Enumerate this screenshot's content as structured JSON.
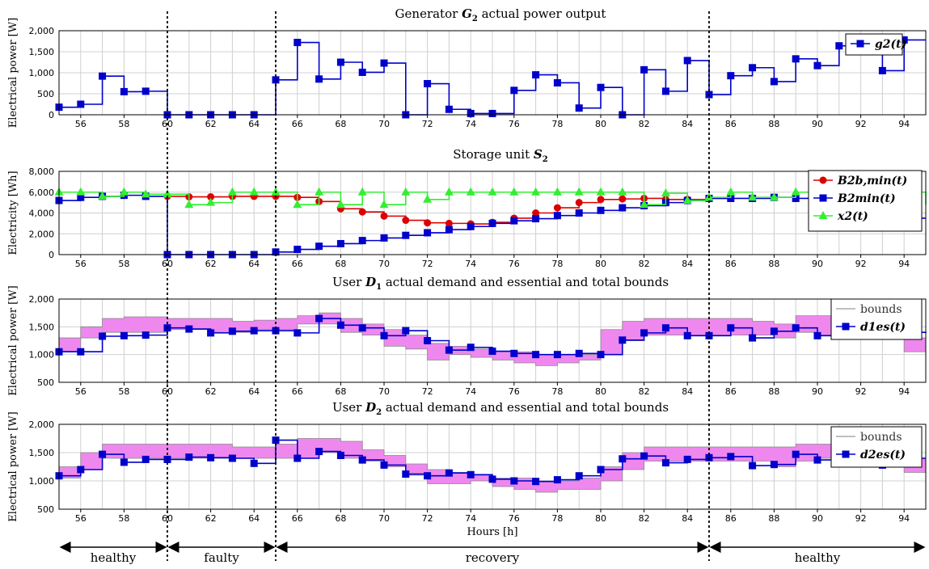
{
  "x_axis_label": "Hours [h]",
  "phases": [
    {
      "label": "healthy",
      "from": 55,
      "to": 60
    },
    {
      "label": "faulty",
      "from": 60,
      "to": 65
    },
    {
      "label": "recovery",
      "from": 65,
      "to": 85
    },
    {
      "label": "healthy",
      "from": 85,
      "to": 95
    }
  ],
  "fault_lines": [
    60,
    65,
    85
  ],
  "colors": {
    "blue": "#0000cc",
    "red": "#dd0000",
    "green": "#33ee33",
    "band": "#ee88ee"
  },
  "chart_data": [
    {
      "type": "line",
      "title": "Generator G2 actual power output",
      "ylabel": "Electrical power [W]",
      "ylim": [
        0,
        2000
      ],
      "yticks": [
        "0",
        "500",
        "1,000",
        "1,500",
        "2,000"
      ],
      "xlim": [
        55,
        95
      ],
      "xticks": [
        "56",
        "58",
        "60",
        "62",
        "64",
        "66",
        "68",
        "70",
        "72",
        "74",
        "76",
        "78",
        "80",
        "82",
        "84",
        "86",
        "88",
        "90",
        "92",
        "94"
      ],
      "step": true,
      "grid": true,
      "legend": "top-right",
      "series": [
        {
          "name": "g2(t)",
          "color": "#0000cc",
          "marker": "square",
          "x": [
            55,
            56,
            57,
            58,
            59,
            60,
            61,
            62,
            63,
            64,
            65,
            66,
            67,
            68,
            69,
            70,
            71,
            72,
            73,
            74,
            75,
            76,
            77,
            78,
            79,
            80,
            81,
            82,
            83,
            84,
            85,
            86,
            87,
            88,
            89,
            90,
            91,
            92,
            93,
            94
          ],
          "values": [
            180,
            250,
            920,
            550,
            560,
            0,
            0,
            0,
            0,
            0,
            830,
            1720,
            850,
            1250,
            1010,
            1230,
            0,
            740,
            130,
            30,
            30,
            580,
            950,
            760,
            160,
            650,
            0,
            1070,
            560,
            1290,
            480,
            930,
            1120,
            790,
            1330,
            1170,
            1640,
            1780,
            1050,
            1780
          ]
        }
      ]
    },
    {
      "type": "line",
      "title": "Storage unit S2",
      "ylabel": "Electricity [Wh]",
      "ylim": [
        0,
        8000
      ],
      "yticks": [
        "0",
        "2,000",
        "4,000",
        "6,000",
        "8,000"
      ],
      "xlim": [
        55,
        95
      ],
      "xticks": [
        "56",
        "58",
        "60",
        "62",
        "64",
        "66",
        "68",
        "70",
        "72",
        "74",
        "76",
        "78",
        "80",
        "82",
        "84",
        "86",
        "88",
        "90",
        "92",
        "94"
      ],
      "step": true,
      "grid": true,
      "legend": "top-right",
      "series": [
        {
          "name": "B2b,min(t)",
          "color": "#dd0000",
          "marker": "circle",
          "x": [
            60,
            61,
            62,
            63,
            64,
            65,
            66,
            67,
            68,
            69,
            70,
            71,
            72,
            73,
            74,
            75,
            76,
            77,
            78,
            79,
            80,
            81,
            82,
            83,
            84,
            85
          ],
          "values": [
            5600,
            5550,
            5550,
            5600,
            5600,
            5600,
            5500,
            5100,
            4400,
            4100,
            3700,
            3300,
            3050,
            3000,
            2950,
            3100,
            3500,
            4000,
            4500,
            5000,
            5300,
            5350,
            5400,
            5300,
            5300,
            5400
          ]
        },
        {
          "name": "B2min(t)",
          "color": "#0000cc",
          "marker": "square",
          "x": [
            55,
            56,
            57,
            58,
            59,
            60,
            61,
            62,
            63,
            64,
            65,
            66,
            67,
            68,
            69,
            70,
            71,
            72,
            73,
            74,
            75,
            76,
            77,
            78,
            79,
            80,
            81,
            82,
            83,
            84,
            85,
            86,
            87,
            88,
            89,
            90,
            91,
            92,
            93,
            94,
            95
          ],
          "values": [
            5200,
            5500,
            5600,
            5700,
            5600,
            0,
            0,
            0,
            0,
            0,
            250,
            500,
            800,
            1050,
            1350,
            1600,
            1850,
            2100,
            2400,
            2700,
            3000,
            3250,
            3450,
            3750,
            4000,
            4250,
            4500,
            4700,
            5000,
            5200,
            5400,
            5400,
            5400,
            5500,
            5400,
            5300,
            4600,
            4500,
            4000,
            3500,
            3500
          ]
        },
        {
          "name": "x2(t)",
          "color": "#33ee33",
          "marker": "triangle",
          "x": [
            55,
            56,
            57,
            58,
            59,
            60,
            61,
            62,
            63,
            64,
            65,
            66,
            67,
            68,
            69,
            70,
            71,
            72,
            73,
            74,
            75,
            76,
            77,
            78,
            79,
            80,
            81,
            82,
            83,
            84,
            85,
            86,
            87,
            88,
            89,
            90,
            91,
            92,
            93,
            94,
            95
          ],
          "values": [
            6000,
            6000,
            5600,
            6000,
            5800,
            5800,
            4800,
            5000,
            6000,
            6000,
            6000,
            4800,
            6000,
            4800,
            6000,
            4800,
            6000,
            5300,
            6000,
            6000,
            6000,
            6000,
            6000,
            6000,
            6000,
            6000,
            6000,
            4800,
            5900,
            5200,
            5500,
            6000,
            5500,
            5500,
            6000,
            6000,
            6000,
            6000,
            6000,
            6000,
            4800
          ]
        }
      ]
    },
    {
      "type": "area",
      "title": "User D1 actual demand and essential and total bounds",
      "ylabel": "Electrical power [W]",
      "ylim": [
        500,
        2000
      ],
      "yticks": [
        "500",
        "1,000",
        "1,500",
        "2,000"
      ],
      "xlim": [
        55,
        95
      ],
      "xticks": [
        "56",
        "58",
        "60",
        "62",
        "64",
        "66",
        "68",
        "70",
        "72",
        "74",
        "76",
        "78",
        "80",
        "82",
        "84",
        "86",
        "88",
        "90",
        "92",
        "94"
      ],
      "step": true,
      "grid": true,
      "legend": "top-right",
      "band": {
        "name": "bounds",
        "x": [
          55,
          56,
          57,
          58,
          59,
          60,
          61,
          62,
          63,
          64,
          65,
          66,
          67,
          68,
          69,
          70,
          71,
          72,
          73,
          74,
          75,
          76,
          77,
          78,
          79,
          80,
          81,
          82,
          83,
          84,
          85,
          86,
          87,
          88,
          89,
          90,
          91,
          92,
          93,
          94
        ],
        "low": [
          1050,
          1300,
          1400,
          1400,
          1400,
          1450,
          1450,
          1400,
          1400,
          1450,
          1450,
          1550,
          1550,
          1400,
          1350,
          1150,
          1100,
          900,
          1000,
          950,
          900,
          850,
          800,
          850,
          900,
          1000,
          1250,
          1350,
          1350,
          1350,
          1350,
          1350,
          1350,
          1300,
          1400,
          1350,
          1350,
          1400,
          1300,
          1050
        ],
        "high": [
          1300,
          1500,
          1650,
          1680,
          1680,
          1650,
          1650,
          1650,
          1600,
          1620,
          1650,
          1700,
          1750,
          1650,
          1550,
          1450,
          1350,
          1200,
          1150,
          1100,
          1050,
          1050,
          1000,
          1000,
          1000,
          1450,
          1600,
          1650,
          1650,
          1650,
          1650,
          1650,
          1600,
          1550,
          1700,
          1700,
          1650,
          1650,
          1600,
          1300
        ]
      },
      "series": [
        {
          "name": "d1es(t)",
          "color": "#0000cc",
          "marker": "square",
          "x": [
            55,
            56,
            57,
            58,
            59,
            60,
            61,
            62,
            63,
            64,
            65,
            66,
            67,
            68,
            69,
            70,
            71,
            72,
            73,
            74,
            75,
            76,
            77,
            78,
            79,
            80,
            81,
            82,
            83,
            84,
            85,
            86,
            87,
            88,
            89,
            90,
            91,
            92,
            93,
            94,
            95
          ],
          "values": [
            1050,
            1050,
            1330,
            1340,
            1350,
            1480,
            1460,
            1390,
            1420,
            1430,
            1430,
            1390,
            1650,
            1530,
            1480,
            1340,
            1430,
            1250,
            1080,
            1130,
            1060,
            1020,
            1000,
            1000,
            1020,
            1000,
            1260,
            1390,
            1480,
            1340,
            1340,
            1480,
            1300,
            1420,
            1480,
            1340,
            1390,
            1400,
            1400,
            1400,
            1410
          ]
        }
      ]
    },
    {
      "type": "area",
      "title": "User D2 actual demand and essential and total bounds",
      "ylabel": "Electrical power [W]",
      "xlabel": "Hours [h]",
      "ylim": [
        500,
        2000
      ],
      "yticks": [
        "500",
        "1,000",
        "1,500",
        "2,000"
      ],
      "xlim": [
        55,
        95
      ],
      "xticks": [
        "56",
        "58",
        "60",
        "62",
        "64",
        "66",
        "68",
        "70",
        "72",
        "74",
        "76",
        "78",
        "80",
        "82",
        "84",
        "86",
        "88",
        "90",
        "92",
        "94"
      ],
      "step": true,
      "grid": true,
      "legend": "top-right",
      "band": {
        "name": "bounds",
        "x": [
          55,
          56,
          57,
          58,
          59,
          60,
          61,
          62,
          63,
          64,
          65,
          66,
          67,
          68,
          69,
          70,
          71,
          72,
          73,
          74,
          75,
          76,
          77,
          78,
          79,
          80,
          81,
          82,
          83,
          84,
          85,
          86,
          87,
          88,
          89,
          90,
          91,
          92,
          93,
          94
        ],
        "low": [
          1050,
          1200,
          1400,
          1400,
          1400,
          1400,
          1400,
          1400,
          1400,
          1400,
          1400,
          1400,
          1500,
          1400,
          1350,
          1250,
          1100,
          950,
          950,
          1000,
          900,
          850,
          800,
          850,
          850,
          1000,
          1200,
          1350,
          1350,
          1350,
          1350,
          1350,
          1350,
          1250,
          1350,
          1400,
          1400,
          1350,
          1300,
          1150
        ],
        "high": [
          1250,
          1500,
          1650,
          1650,
          1650,
          1650,
          1650,
          1650,
          1600,
          1600,
          1650,
          1750,
          1750,
          1700,
          1550,
          1450,
          1300,
          1200,
          1150,
          1100,
          1050,
          1050,
          1000,
          1000,
          1050,
          1250,
          1500,
          1600,
          1600,
          1600,
          1600,
          1600,
          1600,
          1600,
          1650,
          1650,
          1650,
          1650,
          1600,
          1400
        ]
      },
      "series": [
        {
          "name": "d2es(t)",
          "color": "#0000cc",
          "marker": "square",
          "x": [
            55,
            56,
            57,
            58,
            59,
            60,
            61,
            62,
            63,
            64,
            65,
            66,
            67,
            68,
            69,
            70,
            71,
            72,
            73,
            74,
            75,
            76,
            77,
            78,
            79,
            80,
            81,
            82,
            83,
            84,
            85,
            86,
            87,
            88,
            89,
            90,
            91,
            92,
            93,
            94,
            95
          ],
          "values": [
            1090,
            1200,
            1470,
            1330,
            1380,
            1380,
            1420,
            1410,
            1400,
            1310,
            1720,
            1400,
            1520,
            1450,
            1370,
            1280,
            1120,
            1090,
            1140,
            1110,
            1030,
            1000,
            990,
            1020,
            1090,
            1200,
            1390,
            1440,
            1320,
            1380,
            1410,
            1430,
            1270,
            1290,
            1470,
            1370,
            1400,
            1390,
            1280,
            1400,
            1400
          ]
        }
      ]
    }
  ]
}
